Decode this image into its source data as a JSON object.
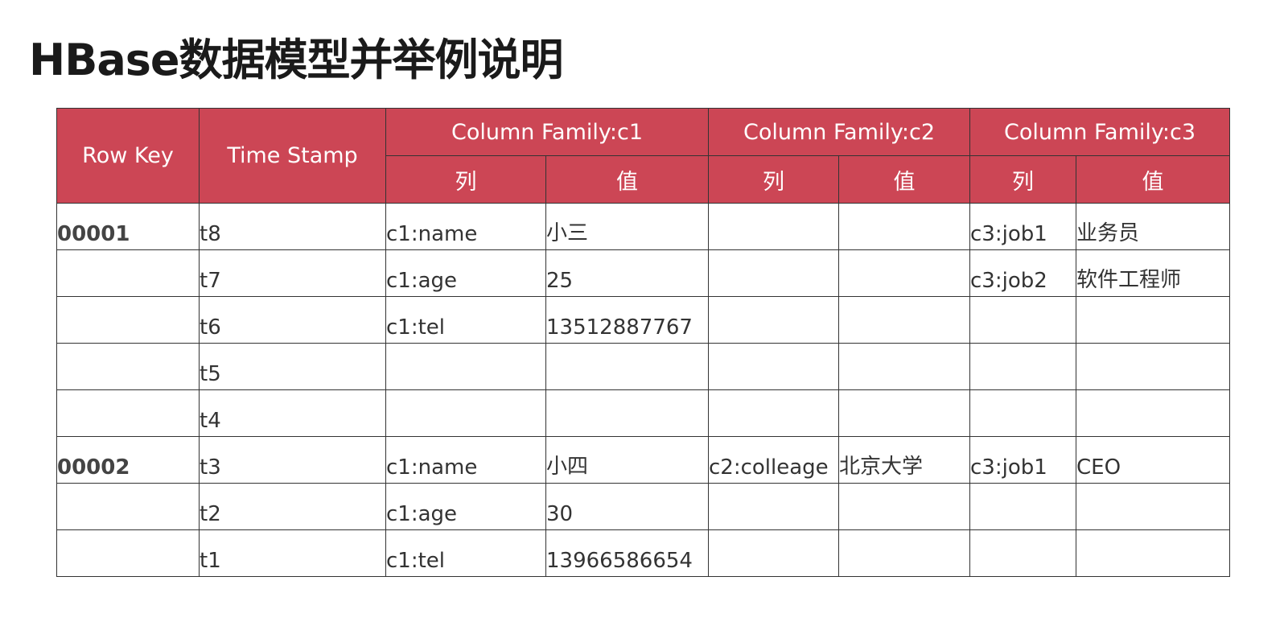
{
  "title": "HBase数据模型并举例说明",
  "header": {
    "row_key": "Row Key",
    "time_stamp": "Time Stamp",
    "families": [
      "Column Family:c1",
      "Column Family:c2",
      "Column Family:c3"
    ],
    "col": "列",
    "val": "值"
  },
  "rows": [
    [
      "00001",
      "t8",
      "c1:name",
      "小三",
      "",
      "",
      "c3:job1",
      "业务员"
    ],
    [
      "",
      "t7",
      "c1:age",
      "25",
      "",
      "",
      "c3:job2",
      "软件工程师"
    ],
    [
      "",
      "t6",
      "c1:tel",
      "13512887767",
      "",
      "",
      "",
      ""
    ],
    [
      "",
      "t5",
      "",
      "",
      "",
      "",
      "",
      ""
    ],
    [
      "",
      "t4",
      "",
      "",
      "",
      "",
      "",
      ""
    ],
    [
      "00002",
      "t3",
      "c1:name",
      "小四",
      "c2:colleage",
      "北京大学",
      "c3:job1",
      "CEO"
    ],
    [
      "",
      "t2",
      "c1:age",
      "30",
      "",
      "",
      "",
      ""
    ],
    [
      "",
      "t1",
      "c1:tel",
      "13966586654",
      "",
      "",
      "",
      ""
    ]
  ],
  "colors": {
    "header_bg": "#cc4655"
  }
}
